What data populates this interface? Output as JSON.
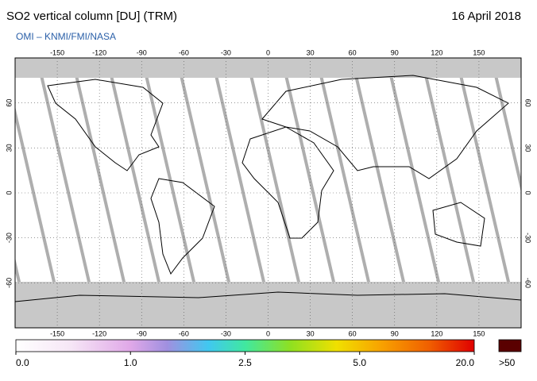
{
  "header": {
    "title": "SO2 vertical column [DU] (TRM)",
    "date": "16 April 2018",
    "source": "OMI  –  KNMI/FMI/NASA"
  },
  "map": {
    "lonlim": [
      -180,
      180
    ],
    "latlim": [
      -90,
      90
    ],
    "lon_ticks": [
      -150,
      -120,
      -90,
      -60,
      -30,
      0,
      30,
      60,
      90,
      120,
      150
    ],
    "lat_ticks": [
      60,
      30,
      0,
      -30,
      -60
    ]
  },
  "colorbar": {
    "ticks": [
      {
        "value": 0,
        "label": "0.0"
      },
      {
        "value": 1,
        "label": "1.0"
      },
      {
        "value": 2.5,
        "label": "2.5"
      },
      {
        "value": 5,
        "label": "5.0"
      },
      {
        "value": 20,
        "label": "20.0"
      }
    ],
    "overflow_label": ">50"
  }
}
